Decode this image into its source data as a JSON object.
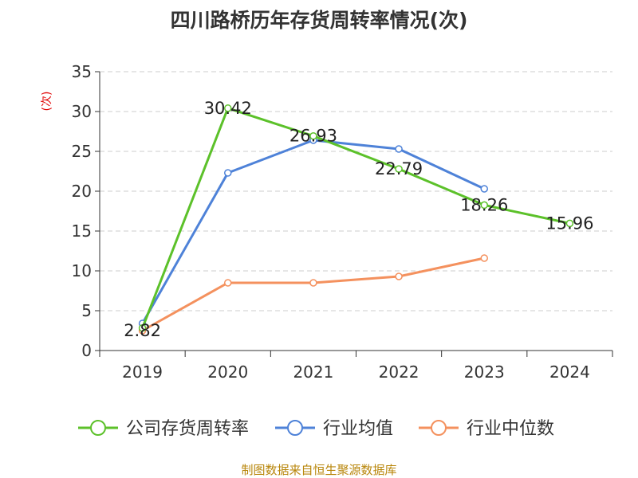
{
  "chart_data": {
    "type": "line",
    "title": "四川路桥历年存货周转率情况(次)",
    "ylabel": "(次)",
    "x": [
      "2019",
      "2020",
      "2021",
      "2022",
      "2023",
      "2024"
    ],
    "ylim": [
      0,
      35
    ],
    "yticks": [
      0,
      5,
      10,
      15,
      20,
      25,
      30,
      35
    ],
    "grid": true,
    "legend_position": "bottom",
    "series": [
      {
        "name": "公司存货周转率",
        "color": "#5cc12a",
        "values": [
          2.82,
          30.42,
          26.93,
          22.79,
          18.26,
          15.96
        ],
        "labels": [
          "2.82",
          "30.42",
          "26.93",
          "22.79",
          "18.26",
          "15.96"
        ]
      },
      {
        "name": "行业均值",
        "color": "#4e82d8",
        "values": [
          3.4,
          22.3,
          26.4,
          25.3,
          20.3,
          null
        ],
        "labels": []
      },
      {
        "name": "行业中位数",
        "color": "#f4915e",
        "values": [
          2.5,
          8.5,
          8.5,
          9.3,
          11.6,
          null
        ],
        "labels": []
      }
    ]
  },
  "source_note": "制图数据来自恒生聚源数据库"
}
